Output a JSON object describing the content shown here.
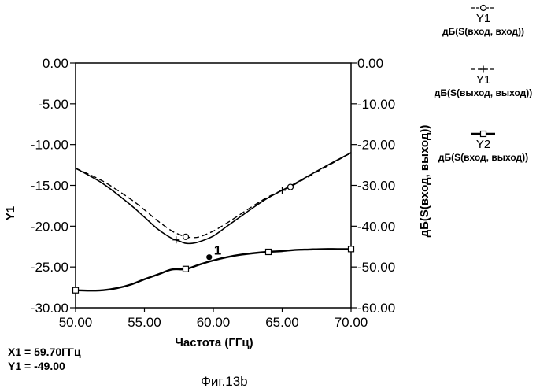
{
  "chart_data": {
    "type": "line",
    "caption": "Фиг.13b",
    "xlabel": "Частота (ГГц)",
    "ylabel_left": "Y1",
    "ylabel_right": "дБ(S(вход, выход))",
    "xlim": [
      50,
      70
    ],
    "ylim_left": [
      -30,
      0
    ],
    "ylim_right": [
      -60,
      0
    ],
    "x_ticks": [
      "50.00",
      "55.00",
      "60.00",
      "65.00",
      "70.00"
    ],
    "y_left_ticks": [
      "0.00",
      "-5.00",
      "-10.00",
      "-15.00",
      "-20.00",
      "-25.00",
      "-30.00"
    ],
    "y_right_ticks": [
      "0.00",
      "-10.00",
      "-20.00",
      "-30.00",
      "-40.00",
      "-50.00",
      "-60.00"
    ],
    "grid": false,
    "legend_position": "right",
    "series": [
      {
        "name": "дБ(S(вход, вход))",
        "axis_label": "Y1",
        "axis": "left",
        "marker": "circle",
        "line": "dashed",
        "color": "#000000",
        "x": [
          50,
          52,
          54,
          55,
          56,
          57,
          57.5,
          58,
          58.5,
          59,
          60,
          61,
          62,
          63,
          64,
          65,
          65.6,
          66,
          68,
          70
        ],
        "y": [
          -12.9,
          -14.5,
          -16.7,
          -18.0,
          -19.4,
          -20.6,
          -21.0,
          -21.3,
          -21.4,
          -21.3,
          -20.6,
          -19.6,
          -18.5,
          -17.4,
          -16.4,
          -15.6,
          -15.2,
          -14.8,
          -12.9,
          -11.0
        ],
        "marker_x": [
          58.0,
          65.6
        ]
      },
      {
        "name": "дБ(S(выход, выход))",
        "axis_label": "Y1",
        "axis": "left",
        "marker": "plus",
        "line": "solid",
        "color": "#000000",
        "x": [
          50,
          52,
          54,
          55,
          56,
          57,
          57.5,
          58,
          58.5,
          59,
          60,
          61,
          62,
          63,
          64,
          65,
          66,
          68,
          70
        ],
        "y": [
          -12.9,
          -14.8,
          -17.4,
          -18.9,
          -20.4,
          -21.5,
          -21.8,
          -22.1,
          -22.1,
          -21.9,
          -21.2,
          -20.0,
          -18.8,
          -17.6,
          -16.5,
          -15.6,
          -14.7,
          -12.8,
          -11.0
        ],
        "marker_x": [
          57.3,
          65.0
        ]
      },
      {
        "name": "дБ(S(вход, выход))",
        "axis_label": "Y2",
        "axis": "right",
        "marker": "square",
        "line": "solid-thick",
        "color": "#000000",
        "x": [
          50,
          51,
          52,
          53,
          54,
          55,
          56,
          57,
          58,
          59,
          60,
          61,
          62,
          63,
          64,
          65,
          66,
          67,
          68,
          69,
          70
        ],
        "y": [
          -55.7,
          -55.8,
          -55.7,
          -55.2,
          -54.3,
          -53.0,
          -51.8,
          -50.6,
          -50.5,
          -49.4,
          -48.4,
          -47.6,
          -47.0,
          -46.6,
          -46.3,
          -46.1,
          -45.8,
          -45.7,
          -45.6,
          -45.6,
          -45.6
        ],
        "marker_x": [
          50,
          58,
          64,
          70
        ]
      }
    ],
    "marker_annotation": {
      "label": "1",
      "x": 59.7,
      "y_right": -47.6
    },
    "readout": {
      "x_text": "X1 = 59.70ГГц",
      "y_text": "Y1 = -49.00"
    }
  }
}
